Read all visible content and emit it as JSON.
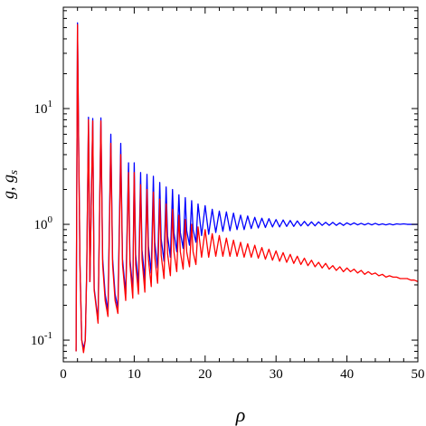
{
  "chart_data": {
    "type": "line",
    "xlabel": "ρ",
    "ylabel": "g, gs",
    "ylabel_parts": {
      "main": "g, g",
      "subscript": "s"
    },
    "x_range": [
      0,
      50
    ],
    "y_range": [
      0.065,
      75
    ],
    "y_scale": "log",
    "grid": false,
    "legend": "none",
    "x_ticks": [
      0,
      10,
      20,
      30,
      40,
      50
    ],
    "x_tick_labels": [
      "0",
      "10",
      "20",
      "30",
      "40",
      "50"
    ],
    "y_ticks": [
      0.1,
      1,
      10
    ],
    "y_tick_labels": [
      {
        "mantissa": "10",
        "exponent": "-1"
      },
      {
        "mantissa": "10",
        "exponent": "0"
      },
      {
        "mantissa": "10",
        "exponent": "1"
      }
    ],
    "series": [
      {
        "color": "#0000ff",
        "points": [
          [
            1.8,
            0.08
          ],
          [
            2.0,
            55
          ],
          [
            2.15,
            6
          ],
          [
            2.35,
            0.45
          ],
          [
            2.6,
            0.1
          ],
          [
            2.85,
            0.085
          ],
          [
            3.1,
            0.1
          ],
          [
            3.3,
            0.4
          ],
          [
            3.55,
            8.4
          ],
          [
            3.75,
            0.32
          ],
          [
            4.15,
            8.2
          ],
          [
            4.35,
            0.28
          ],
          [
            4.9,
            0.15
          ],
          [
            5.3,
            8.3
          ],
          [
            5.55,
            0.5
          ],
          [
            5.9,
            0.25
          ],
          [
            6.3,
            0.18
          ],
          [
            6.7,
            6.0
          ],
          [
            6.95,
            0.5
          ],
          [
            7.3,
            0.25
          ],
          [
            7.7,
            0.19
          ],
          [
            8.1,
            5.0
          ],
          [
            8.35,
            0.5
          ],
          [
            8.8,
            0.25
          ],
          [
            9.2,
            3.4
          ],
          [
            9.4,
            0.5
          ],
          [
            9.8,
            0.27
          ],
          [
            10.0,
            3.4
          ],
          [
            10.2,
            0.55
          ],
          [
            10.6,
            0.3
          ],
          [
            10.9,
            2.8
          ],
          [
            11.1,
            0.6
          ],
          [
            11.5,
            0.33
          ],
          [
            11.8,
            2.7
          ],
          [
            12.0,
            0.65
          ],
          [
            12.4,
            0.38
          ],
          [
            12.7,
            2.6
          ],
          [
            12.9,
            0.7
          ],
          [
            13.3,
            0.42
          ],
          [
            13.6,
            2.3
          ],
          [
            13.8,
            0.75
          ],
          [
            14.2,
            0.48
          ],
          [
            14.5,
            2.1
          ],
          [
            14.7,
            0.8
          ],
          [
            15.1,
            0.52
          ],
          [
            15.4,
            2.0
          ],
          [
            15.6,
            0.85
          ],
          [
            16.0,
            0.58
          ],
          [
            16.3,
            1.8
          ],
          [
            16.5,
            0.85
          ],
          [
            16.9,
            0.62
          ],
          [
            17.2,
            1.7
          ],
          [
            17.4,
            0.88
          ],
          [
            17.8,
            0.66
          ],
          [
            18.1,
            1.6
          ],
          [
            18.3,
            0.9
          ],
          [
            18.7,
            0.7
          ],
          [
            19.0,
            1.5
          ],
          [
            19.5,
            0.8
          ],
          [
            20.0,
            1.45
          ],
          [
            20.5,
            0.82
          ],
          [
            21.0,
            1.35
          ],
          [
            21.5,
            0.85
          ],
          [
            22.0,
            1.3
          ],
          [
            22.5,
            0.87
          ],
          [
            23.0,
            1.28
          ],
          [
            23.5,
            0.88
          ],
          [
            24.0,
            1.25
          ],
          [
            24.5,
            0.9
          ],
          [
            25.0,
            1.2
          ],
          [
            25.5,
            0.9
          ],
          [
            26.0,
            1.18
          ],
          [
            26.5,
            0.92
          ],
          [
            27.0,
            1.15
          ],
          [
            27.5,
            0.93
          ],
          [
            28.0,
            1.13
          ],
          [
            28.5,
            0.94
          ],
          [
            29.0,
            1.12
          ],
          [
            29.5,
            0.95
          ],
          [
            30.0,
            1.1
          ],
          [
            30.5,
            0.95
          ],
          [
            31.0,
            1.09
          ],
          [
            31.5,
            0.96
          ],
          [
            32.0,
            1.08
          ],
          [
            32.5,
            0.96
          ],
          [
            33.0,
            1.07
          ],
          [
            33.5,
            0.97
          ],
          [
            34.0,
            1.06
          ],
          [
            34.5,
            0.97
          ],
          [
            35.0,
            1.05
          ],
          [
            35.5,
            0.97
          ],
          [
            36.0,
            1.05
          ],
          [
            36.5,
            0.98
          ],
          [
            37.0,
            1.04
          ],
          [
            37.5,
            0.98
          ],
          [
            38.0,
            1.04
          ],
          [
            38.5,
            0.98
          ],
          [
            39.0,
            1.03
          ],
          [
            39.5,
            0.98
          ],
          [
            40.0,
            1.03
          ],
          [
            40.5,
            0.99
          ],
          [
            41.0,
            1.03
          ],
          [
            41.5,
            0.99
          ],
          [
            42.0,
            1.02
          ],
          [
            42.5,
            0.99
          ],
          [
            43.0,
            1.02
          ],
          [
            43.5,
            0.99
          ],
          [
            44.0,
            1.02
          ],
          [
            44.5,
            0.99
          ],
          [
            45.0,
            1.01
          ],
          [
            45.5,
            0.99
          ],
          [
            46.0,
            1.01
          ],
          [
            46.5,
            0.99
          ],
          [
            47.0,
            1.01
          ],
          [
            47.5,
            1.0
          ],
          [
            48.0,
            1.01
          ],
          [
            48.5,
            1.0
          ],
          [
            49.0,
            1.0
          ],
          [
            49.5,
            1.0
          ],
          [
            50.0,
            1.0
          ]
        ]
      },
      {
        "color": "#ff0000",
        "points": [
          [
            1.8,
            0.08
          ],
          [
            2.0,
            53
          ],
          [
            2.15,
            5.8
          ],
          [
            2.35,
            0.45
          ],
          [
            2.6,
            0.1
          ],
          [
            2.85,
            0.078
          ],
          [
            3.1,
            0.1
          ],
          [
            3.3,
            0.4
          ],
          [
            3.55,
            8.0
          ],
          [
            3.75,
            0.32
          ],
          [
            4.15,
            7.8
          ],
          [
            4.35,
            0.27
          ],
          [
            4.9,
            0.14
          ],
          [
            5.3,
            7.8
          ],
          [
            5.55,
            0.45
          ],
          [
            5.9,
            0.22
          ],
          [
            6.3,
            0.16
          ],
          [
            6.7,
            5.0
          ],
          [
            6.95,
            0.45
          ],
          [
            7.3,
            0.22
          ],
          [
            7.7,
            0.17
          ],
          [
            8.1,
            4.0
          ],
          [
            8.35,
            0.45
          ],
          [
            8.8,
            0.22
          ],
          [
            9.2,
            2.8
          ],
          [
            9.4,
            0.45
          ],
          [
            9.8,
            0.23
          ],
          [
            10.0,
            2.8
          ],
          [
            10.2,
            0.45
          ],
          [
            10.6,
            0.25
          ],
          [
            10.9,
            2.2
          ],
          [
            11.1,
            0.5
          ],
          [
            11.5,
            0.26
          ],
          [
            11.8,
            2.0
          ],
          [
            12.0,
            0.5
          ],
          [
            12.4,
            0.29
          ],
          [
            12.7,
            1.9
          ],
          [
            12.9,
            0.52
          ],
          [
            13.3,
            0.31
          ],
          [
            13.6,
            1.65
          ],
          [
            13.8,
            0.54
          ],
          [
            14.2,
            0.34
          ],
          [
            14.5,
            1.5
          ],
          [
            14.7,
            0.56
          ],
          [
            15.1,
            0.36
          ],
          [
            15.4,
            1.35
          ],
          [
            15.6,
            0.58
          ],
          [
            16.0,
            0.39
          ],
          [
            16.3,
            1.2
          ],
          [
            16.5,
            0.58
          ],
          [
            16.9,
            0.41
          ],
          [
            17.2,
            1.1
          ],
          [
            17.4,
            0.58
          ],
          [
            17.8,
            0.43
          ],
          [
            18.1,
            1.0
          ],
          [
            18.3,
            0.58
          ],
          [
            18.7,
            0.45
          ],
          [
            19.0,
            0.95
          ],
          [
            19.5,
            0.52
          ],
          [
            20.0,
            0.9
          ],
          [
            20.5,
            0.52
          ],
          [
            21.0,
            0.83
          ],
          [
            21.5,
            0.53
          ],
          [
            22.0,
            0.8
          ],
          [
            22.5,
            0.53
          ],
          [
            23.0,
            0.76
          ],
          [
            23.5,
            0.53
          ],
          [
            24.0,
            0.73
          ],
          [
            24.5,
            0.53
          ],
          [
            25.0,
            0.7
          ],
          [
            25.5,
            0.52
          ],
          [
            26.0,
            0.68
          ],
          [
            26.5,
            0.52
          ],
          [
            27.0,
            0.66
          ],
          [
            27.5,
            0.51
          ],
          [
            28.0,
            0.63
          ],
          [
            28.5,
            0.5
          ],
          [
            29.0,
            0.61
          ],
          [
            29.5,
            0.49
          ],
          [
            30.0,
            0.59
          ],
          [
            30.5,
            0.48
          ],
          [
            31.0,
            0.57
          ],
          [
            31.5,
            0.47
          ],
          [
            32.0,
            0.55
          ],
          [
            32.5,
            0.46
          ],
          [
            33.0,
            0.53
          ],
          [
            33.5,
            0.45
          ],
          [
            34.0,
            0.51
          ],
          [
            34.5,
            0.44
          ],
          [
            35.0,
            0.49
          ],
          [
            35.5,
            0.43
          ],
          [
            36.0,
            0.47
          ],
          [
            36.5,
            0.42
          ],
          [
            37.0,
            0.46
          ],
          [
            37.5,
            0.41
          ],
          [
            38.0,
            0.44
          ],
          [
            38.5,
            0.4
          ],
          [
            39.0,
            0.43
          ],
          [
            39.5,
            0.39
          ],
          [
            40.0,
            0.42
          ],
          [
            40.5,
            0.39
          ],
          [
            41.0,
            0.41
          ],
          [
            41.5,
            0.38
          ],
          [
            42.0,
            0.4
          ],
          [
            42.5,
            0.37
          ],
          [
            43.0,
            0.39
          ],
          [
            43.5,
            0.37
          ],
          [
            44.0,
            0.38
          ],
          [
            44.5,
            0.36
          ],
          [
            45.0,
            0.37
          ],
          [
            45.5,
            0.35
          ],
          [
            46.0,
            0.36
          ],
          [
            46.5,
            0.35
          ],
          [
            47.0,
            0.35
          ],
          [
            47.5,
            0.34
          ],
          [
            48.0,
            0.34
          ],
          [
            48.5,
            0.34
          ],
          [
            49.0,
            0.33
          ],
          [
            49.5,
            0.33
          ],
          [
            50.0,
            0.32
          ]
        ]
      }
    ]
  }
}
